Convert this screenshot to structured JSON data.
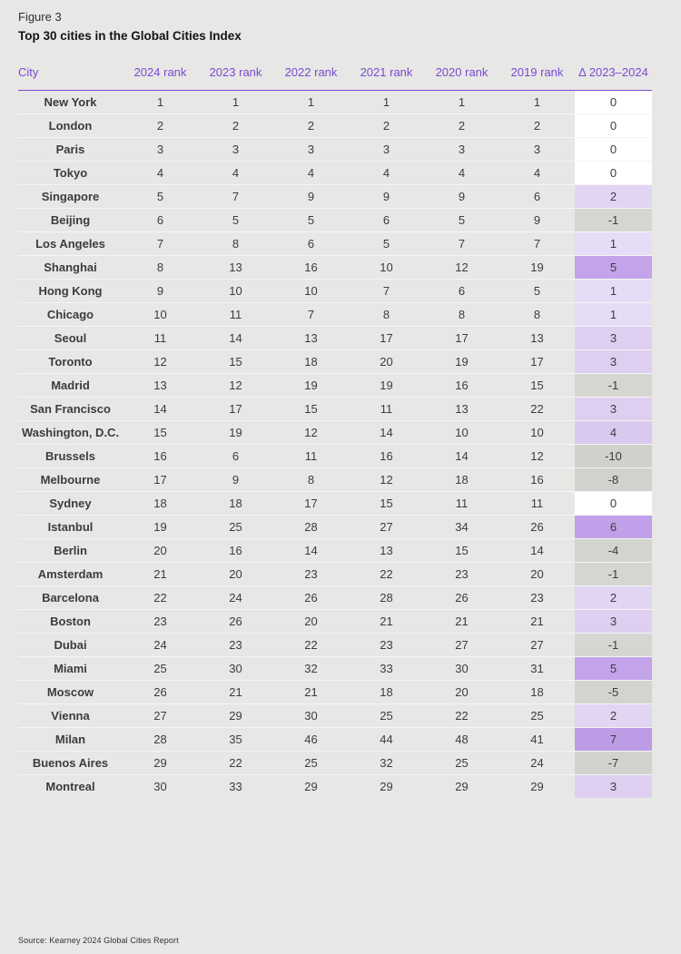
{
  "header": {
    "figure_label": "Figure 3",
    "title": "Top 30 cities in the Global Cities Index"
  },
  "colors": {
    "page_bg": "#e7e7e5",
    "accent_purple": "#7a4ad0",
    "negative_gray": "#d5d5d2",
    "positive_light_purple": "#e2d4f3",
    "positive_strong_purple": "#c3a4ea",
    "zero_white": "#ffffff",
    "row_separator": "#f5f5f3"
  },
  "table": {
    "columns": [
      "City",
      "2024 rank",
      "2023 rank",
      "2022 rank",
      "2021 rank",
      "2020 rank",
      "2019 rank",
      "Δ 2023–2024"
    ],
    "rows": [
      {
        "city": "New York",
        "ranks": [
          1,
          1,
          1,
          1,
          1,
          1
        ],
        "delta": "0",
        "delta_bg": "#ffffff"
      },
      {
        "city": "London",
        "ranks": [
          2,
          2,
          2,
          2,
          2,
          2
        ],
        "delta": "0",
        "delta_bg": "#ffffff"
      },
      {
        "city": "Paris",
        "ranks": [
          3,
          3,
          3,
          3,
          3,
          3
        ],
        "delta": "0",
        "delta_bg": "#ffffff"
      },
      {
        "city": "Tokyo",
        "ranks": [
          4,
          4,
          4,
          4,
          4,
          4
        ],
        "delta": "0",
        "delta_bg": "#ffffff"
      },
      {
        "city": "Singapore",
        "ranks": [
          5,
          7,
          9,
          9,
          9,
          6
        ],
        "delta": "2",
        "delta_bg": "#e2d4f3"
      },
      {
        "city": "Beijing",
        "ranks": [
          6,
          5,
          5,
          6,
          5,
          9
        ],
        "delta": "-1",
        "delta_bg": "#d5d5d2"
      },
      {
        "city": "Los Angeles",
        "ranks": [
          7,
          8,
          6,
          5,
          7,
          7
        ],
        "delta": "1",
        "delta_bg": "#e7dcf6"
      },
      {
        "city": "Shanghai",
        "ranks": [
          8,
          13,
          16,
          10,
          12,
          19
        ],
        "delta": "5",
        "delta_bg": "#c3a4ea"
      },
      {
        "city": "Hong Kong",
        "ranks": [
          9,
          10,
          10,
          7,
          6,
          5
        ],
        "delta": "1",
        "delta_bg": "#e7dcf6"
      },
      {
        "city": "Chicago",
        "ranks": [
          10,
          11,
          7,
          8,
          8,
          8
        ],
        "delta": "1",
        "delta_bg": "#e7dcf6"
      },
      {
        "city": "Seoul",
        "ranks": [
          11,
          14,
          13,
          17,
          17,
          13
        ],
        "delta": "3",
        "delta_bg": "#decff1"
      },
      {
        "city": "Toronto",
        "ranks": [
          12,
          15,
          18,
          20,
          19,
          17
        ],
        "delta": "3",
        "delta_bg": "#decff1"
      },
      {
        "city": "Madrid",
        "ranks": [
          13,
          12,
          19,
          19,
          16,
          15
        ],
        "delta": "-1",
        "delta_bg": "#d5d5d2"
      },
      {
        "city": "San Francisco",
        "ranks": [
          14,
          17,
          15,
          11,
          13,
          22
        ],
        "delta": "3",
        "delta_bg": "#decff1"
      },
      {
        "city": "Washington, D.C.",
        "ranks": [
          15,
          19,
          12,
          14,
          10,
          10
        ],
        "delta": "4",
        "delta_bg": "#dac9ef"
      },
      {
        "city": "Brussels",
        "ranks": [
          16,
          6,
          11,
          16,
          14,
          12
        ],
        "delta": "-10",
        "delta_bg": "#d0d0cd"
      },
      {
        "city": "Melbourne",
        "ranks": [
          17,
          9,
          8,
          12,
          18,
          16
        ],
        "delta": "-8",
        "delta_bg": "#d1d1ce"
      },
      {
        "city": "Sydney",
        "ranks": [
          18,
          18,
          17,
          15,
          11,
          11
        ],
        "delta": "0",
        "delta_bg": "#ffffff"
      },
      {
        "city": "Istanbul",
        "ranks": [
          19,
          25,
          28,
          27,
          34,
          26
        ],
        "delta": "6",
        "delta_bg": "#c0a0e8"
      },
      {
        "city": "Berlin",
        "ranks": [
          20,
          16,
          14,
          13,
          15,
          14
        ],
        "delta": "-4",
        "delta_bg": "#d3d3d0"
      },
      {
        "city": "Amsterdam",
        "ranks": [
          21,
          20,
          23,
          22,
          23,
          20
        ],
        "delta": "-1",
        "delta_bg": "#d5d5d2"
      },
      {
        "city": "Barcelona",
        "ranks": [
          22,
          24,
          26,
          28,
          26,
          23
        ],
        "delta": "2",
        "delta_bg": "#e2d4f3"
      },
      {
        "city": "Boston",
        "ranks": [
          23,
          26,
          20,
          21,
          21,
          21
        ],
        "delta": "3",
        "delta_bg": "#decff1"
      },
      {
        "city": "Dubai",
        "ranks": [
          24,
          23,
          22,
          23,
          27,
          27
        ],
        "delta": "-1",
        "delta_bg": "#d5d5d2"
      },
      {
        "city": "Miami",
        "ranks": [
          25,
          30,
          32,
          33,
          30,
          31
        ],
        "delta": "5",
        "delta_bg": "#c3a4ea"
      },
      {
        "city": "Moscow",
        "ranks": [
          26,
          21,
          21,
          18,
          20,
          18
        ],
        "delta": "-5",
        "delta_bg": "#d3d3d0"
      },
      {
        "city": "Vienna",
        "ranks": [
          27,
          29,
          30,
          25,
          22,
          25
        ],
        "delta": "2",
        "delta_bg": "#e2d4f3"
      },
      {
        "city": "Milan",
        "ranks": [
          28,
          35,
          46,
          44,
          48,
          41
        ],
        "delta": "7",
        "delta_bg": "#bd9ce6"
      },
      {
        "city": "Buenos Aires",
        "ranks": [
          29,
          22,
          25,
          32,
          25,
          24
        ],
        "delta": "-7",
        "delta_bg": "#d2d2cf"
      },
      {
        "city": "Montreal",
        "ranks": [
          30,
          33,
          29,
          29,
          29,
          29
        ],
        "delta": "3",
        "delta_bg": "#decff1"
      }
    ]
  },
  "footer": {
    "source": "Source: Kearney 2024 Global Cities Report"
  }
}
